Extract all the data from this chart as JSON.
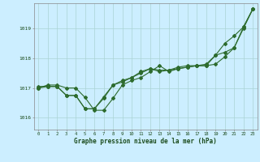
{
  "bg_color": "#cceeff",
  "grid_color": "#aad4d4",
  "line_color": "#2d6b2d",
  "xlabel": "Graphe pression niveau de la mer (hPa)",
  "xlim": [
    -0.5,
    23.5
  ],
  "ylim": [
    1015.6,
    1019.85
  ],
  "yticks": [
    1016,
    1017,
    1018,
    1019
  ],
  "xticks": [
    0,
    1,
    2,
    3,
    4,
    5,
    6,
    7,
    8,
    9,
    10,
    11,
    12,
    13,
    14,
    15,
    16,
    17,
    18,
    19,
    20,
    21,
    22,
    23
  ],
  "series": [
    [
      1017.0,
      1017.1,
      1017.1,
      1017.0,
      1017.0,
      1016.68,
      1016.25,
      1016.25,
      1016.65,
      1017.1,
      1017.25,
      1017.35,
      1017.55,
      1017.75,
      1017.55,
      1017.65,
      1017.7,
      1017.75,
      1017.75,
      1018.1,
      1018.5,
      1018.75,
      1019.05,
      1019.65
    ],
    [
      1017.05,
      1017.05,
      1017.05,
      1016.75,
      1016.75,
      1016.3,
      1016.3,
      1016.7,
      1017.1,
      1017.25,
      1017.35,
      1017.55,
      1017.65,
      1017.6,
      1017.6,
      1017.7,
      1017.75,
      1017.75,
      1017.8,
      1018.1,
      1018.2,
      1018.35,
      1019.05,
      1019.65
    ],
    [
      1017.0,
      1017.05,
      1017.05,
      1016.75,
      1016.75,
      1016.3,
      1016.3,
      1016.65,
      1017.1,
      1017.2,
      1017.35,
      1017.5,
      1017.65,
      1017.55,
      1017.6,
      1017.65,
      1017.7,
      1017.75,
      1017.75,
      1017.8,
      1018.05,
      1018.35,
      1019.0,
      1019.65
    ]
  ],
  "spine_color": "#888888",
  "tick_label_color": "#1a4a1a",
  "xlabel_color": "#1a4a1a",
  "tick_fontsize": 4.0,
  "xlabel_fontsize": 5.5
}
